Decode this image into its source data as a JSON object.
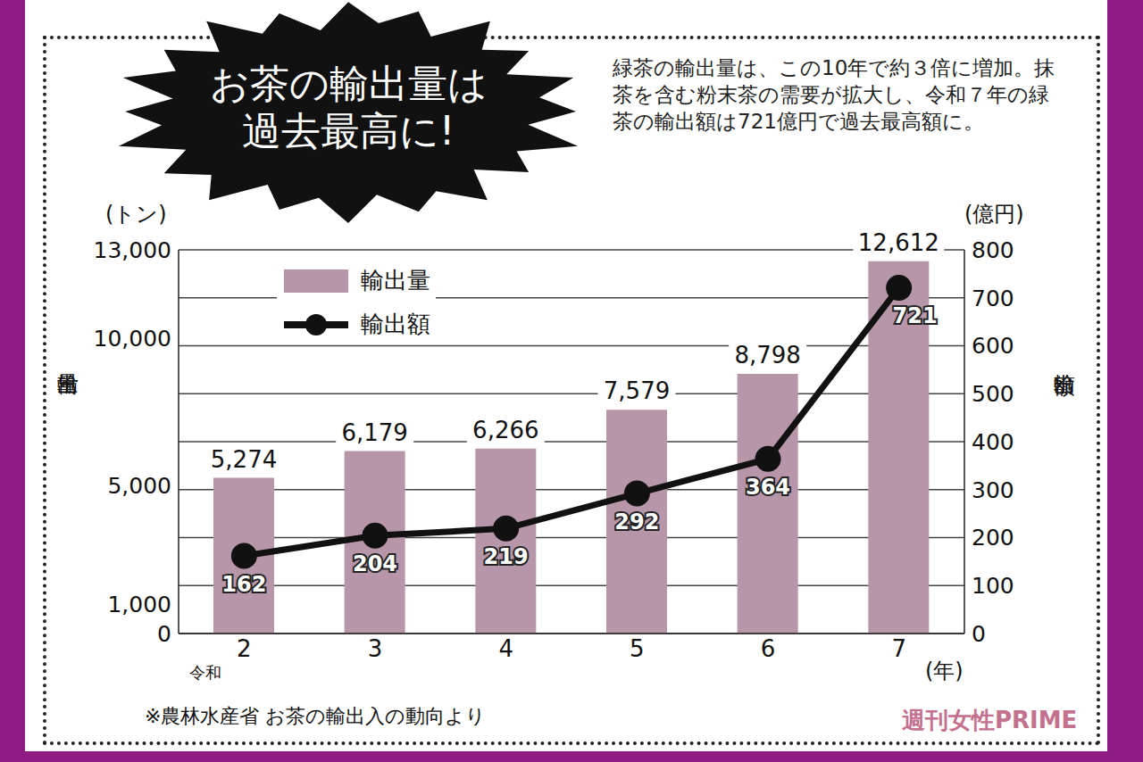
{
  "chart_data": {
    "type": "bar",
    "title": "お茶の輸出量は過去最高に!",
    "subtitle": "緑茶の輸出量は、この10年で約３倍に増加。抹茶を含む粉末茶の需要が拡大し、令和７年の緑茶の輸出額は721億円で過去最高額に。",
    "source": "※農林水産省 お茶の輸出入の動向より",
    "watermark": "週刊女性PRIME",
    "categories": [
      "2",
      "3",
      "4",
      "5",
      "6",
      "7"
    ],
    "xlabel_prefix": "令和",
    "xlabel": "(年)",
    "ylabel": "輸出量",
    "y_unit": "(トン)",
    "y2label": "輸出額",
    "y2_unit": "(億円)",
    "ylim": [
      0,
      13000
    ],
    "yticks": [
      0,
      {
        "value": 1000,
        "label": "1,000"
      },
      {
        "value": 5000,
        "label": "5,000"
      },
      {
        "value": 10000,
        "label": "10,000"
      },
      {
        "value": 13000,
        "label": "13,000"
      }
    ],
    "y2lim": [
      0,
      800
    ],
    "y2ticks": [
      0,
      100,
      200,
      300,
      400,
      500,
      600,
      700,
      800
    ],
    "grid": true,
    "legend": "top-left",
    "data_labels": true,
    "series": [
      {
        "name": "輸出量",
        "type": "bar",
        "color": "#b896aa",
        "values": [
          5274,
          6179,
          6266,
          7579,
          8798,
          12612
        ],
        "value_labels": [
          "5,274",
          "6,179",
          "6,266",
          "7,579",
          "8,798",
          "12,612"
        ]
      },
      {
        "name": "輸出額",
        "type": "line",
        "axis": "y2",
        "color": "#111111",
        "marker": "circle",
        "values": [
          162,
          204,
          219,
          292,
          364,
          721
        ]
      }
    ]
  }
}
